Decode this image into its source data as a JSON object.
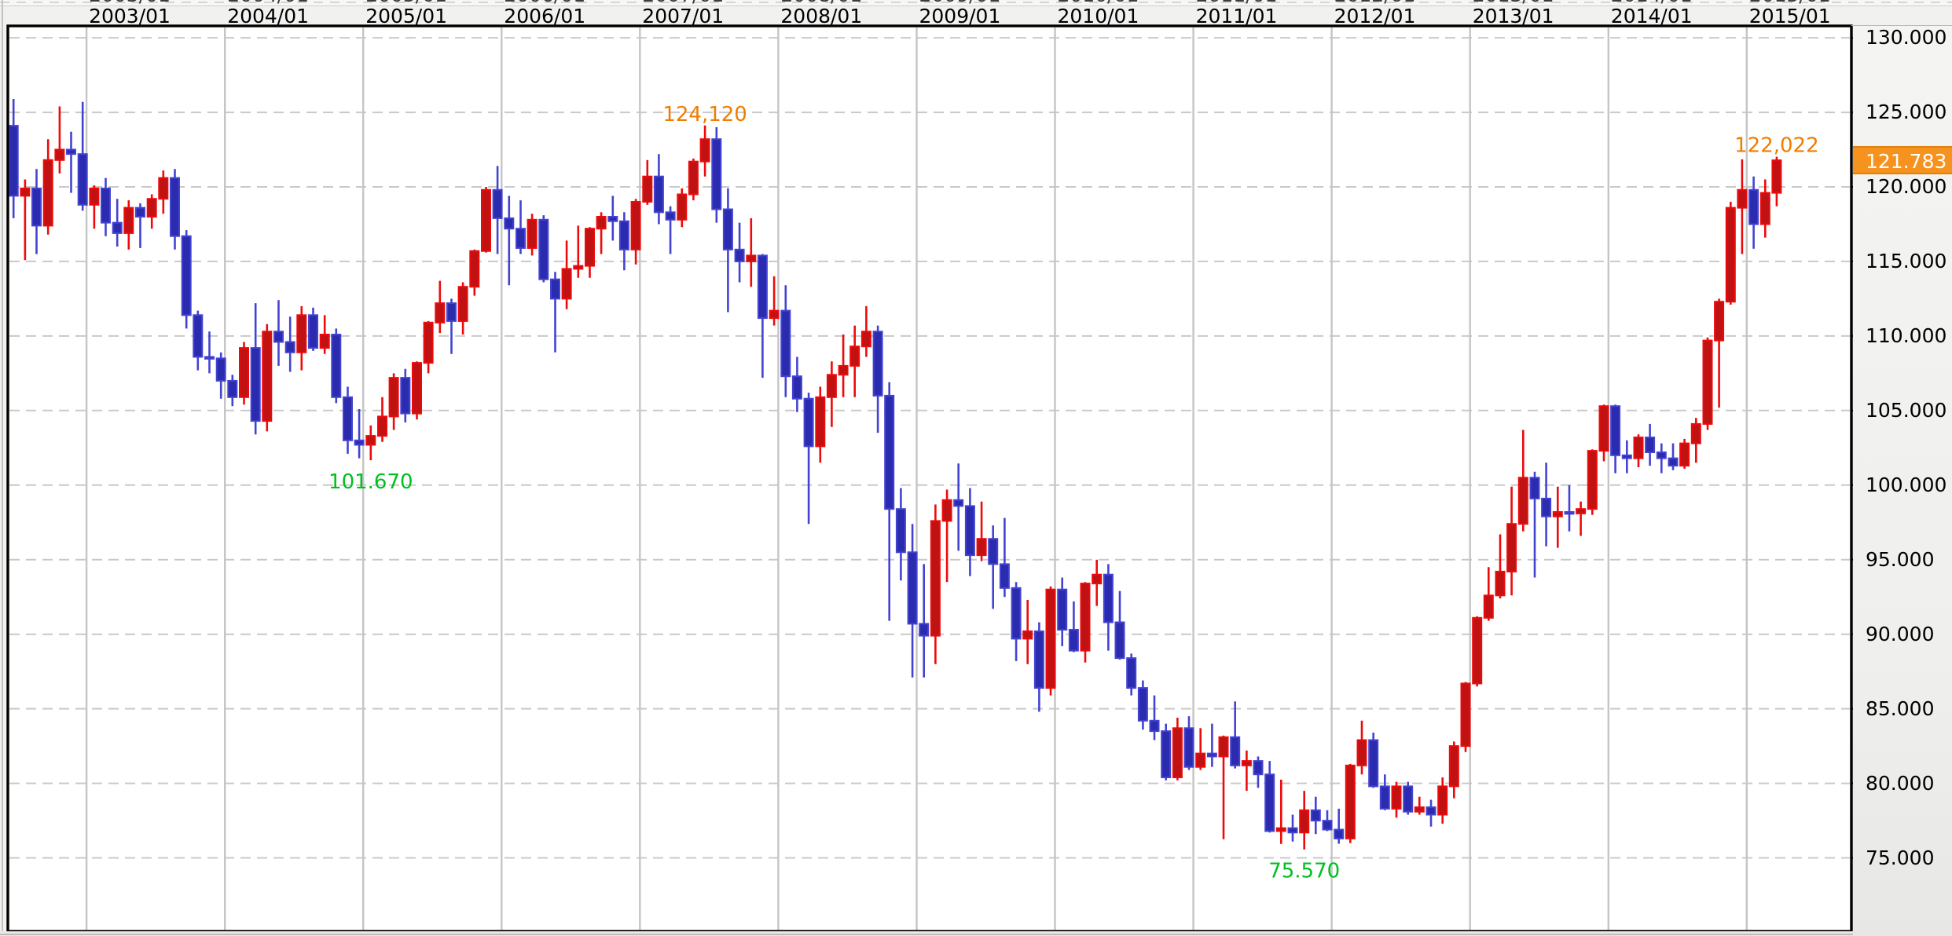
{
  "x_axis": {
    "years": [
      2003,
      2004,
      2005,
      2006,
      2007,
      2008,
      2009,
      2010,
      2011,
      2012,
      2013,
      2014,
      2015
    ],
    "labels": [
      "2003/01",
      "2004/01",
      "2005/01",
      "2006/01",
      "2007/01",
      "2008/01",
      "2009/01",
      "2010/01",
      "2011/01",
      "2012/01",
      "2013/01",
      "2014/01",
      "2015/01"
    ]
  },
  "y_axis": {
    "labels": [
      "130.000",
      "125.000",
      "120.000",
      "115.000",
      "110.000",
      "105.000",
      "100.000",
      "95.000",
      "90.000",
      "85.000",
      "80.000",
      "75.000"
    ]
  },
  "current_price": {
    "label": "121.783",
    "value": 121.783
  },
  "annotations": [
    {
      "text": "124,120",
      "month": "2007-06",
      "price": 124.12,
      "position": "above",
      "kind": "high"
    },
    {
      "text": "122,022",
      "month": "2015-03",
      "price": 122.022,
      "position": "above",
      "kind": "high"
    },
    {
      "text": "101.670",
      "month": "2005-01",
      "price": 101.67,
      "position": "below",
      "kind": "low"
    },
    {
      "text": "75.570",
      "month": "2011-10",
      "price": 75.57,
      "position": "below",
      "kind": "low"
    }
  ],
  "palette": {
    "up_fill": "#c01212",
    "up_border": "#ee0a0a",
    "down_fill": "#2b2bb0",
    "down_border": "#4343d2",
    "h_grid": "#c9c9c9",
    "v_grid": "#c5c5c5",
    "frame": "#000000",
    "plot_bg": "#ffffff",
    "annotation_high": "#ef7d00",
    "annotation_low": "#00c01e",
    "badge_bg": "#f6921e",
    "badge_text": "#ffffff",
    "axis_text": "#000000",
    "tick": "#000000"
  },
  "chart_data": {
    "type": "candlestick",
    "interval": "monthly",
    "start_month": "2002-06",
    "ylim": [
      70.5,
      130.8
    ],
    "grid": {
      "h_step": 5,
      "h_min": 75,
      "h_max": 130,
      "v_years": [
        2003,
        2004,
        2005,
        2006,
        2007,
        2008,
        2009,
        2010,
        2011,
        2012,
        2013,
        2014,
        2015
      ]
    },
    "legend": "none",
    "ohlc": [
      [
        124.1,
        125.9,
        117.9,
        119.4
      ],
      [
        119.4,
        120.5,
        115.1,
        119.9
      ],
      [
        119.9,
        121.2,
        115.5,
        117.4
      ],
      [
        117.4,
        123.2,
        116.8,
        121.8
      ],
      [
        121.8,
        125.4,
        120.9,
        122.5
      ],
      [
        122.5,
        123.7,
        119.6,
        122.2
      ],
      [
        122.2,
        125.7,
        118.4,
        118.8
      ],
      [
        118.8,
        120.1,
        117.2,
        119.9
      ],
      [
        119.9,
        120.6,
        116.7,
        117.6
      ],
      [
        117.6,
        119.2,
        116.0,
        116.9
      ],
      [
        116.9,
        119.1,
        115.8,
        118.6
      ],
      [
        118.6,
        118.9,
        115.9,
        118.0
      ],
      [
        118.0,
        119.5,
        117.2,
        119.2
      ],
      [
        119.2,
        121.1,
        118.2,
        120.6
      ],
      [
        120.6,
        121.2,
        115.8,
        116.7
      ],
      [
        116.7,
        117.1,
        110.5,
        111.4
      ],
      [
        111.4,
        111.7,
        107.7,
        108.6
      ],
      [
        108.6,
        110.3,
        107.5,
        108.5
      ],
      [
        108.5,
        108.9,
        105.8,
        107.0
      ],
      [
        107.0,
        107.4,
        105.3,
        105.9
      ],
      [
        105.9,
        109.6,
        105.4,
        109.2
      ],
      [
        109.2,
        112.2,
        103.4,
        104.3
      ],
      [
        104.3,
        110.8,
        103.6,
        110.3
      ],
      [
        110.3,
        112.4,
        108.0,
        109.6
      ],
      [
        109.6,
        111.3,
        107.6,
        108.9
      ],
      [
        108.9,
        112.0,
        107.7,
        111.4
      ],
      [
        111.4,
        111.9,
        109.0,
        109.2
      ],
      [
        109.2,
        111.4,
        108.8,
        110.1
      ],
      [
        110.1,
        110.5,
        105.5,
        105.9
      ],
      [
        105.9,
        106.6,
        102.1,
        103.0
      ],
      [
        103.0,
        105.1,
        101.8,
        102.7
      ],
      [
        102.7,
        104.0,
        101.67,
        103.3
      ],
      [
        103.3,
        105.9,
        102.9,
        104.6
      ],
      [
        104.6,
        107.5,
        103.7,
        107.2
      ],
      [
        107.2,
        107.8,
        104.2,
        104.8
      ],
      [
        104.8,
        108.3,
        104.4,
        108.2
      ],
      [
        108.2,
        111.0,
        107.5,
        110.9
      ],
      [
        110.9,
        113.7,
        110.2,
        112.2
      ],
      [
        112.2,
        112.5,
        108.8,
        111.0
      ],
      [
        111.0,
        113.6,
        110.1,
        113.3
      ],
      [
        113.3,
        115.8,
        112.7,
        115.7
      ],
      [
        115.7,
        120.0,
        115.6,
        119.8
      ],
      [
        119.8,
        121.4,
        115.5,
        117.9
      ],
      [
        117.9,
        119.4,
        113.4,
        117.2
      ],
      [
        117.2,
        119.1,
        115.5,
        115.9
      ],
      [
        115.9,
        118.2,
        115.4,
        117.8
      ],
      [
        117.8,
        118.1,
        113.6,
        113.8
      ],
      [
        113.8,
        114.3,
        108.9,
        112.5
      ],
      [
        112.5,
        116.4,
        111.8,
        114.5
      ],
      [
        114.5,
        117.4,
        113.9,
        114.7
      ],
      [
        114.7,
        117.3,
        113.9,
        117.2
      ],
      [
        117.2,
        118.3,
        115.5,
        118.0
      ],
      [
        118.0,
        119.4,
        116.4,
        117.7
      ],
      [
        117.7,
        118.3,
        114.4,
        115.8
      ],
      [
        115.8,
        119.2,
        114.8,
        119.0
      ],
      [
        119.0,
        121.8,
        118.8,
        120.7
      ],
      [
        120.7,
        122.2,
        117.5,
        118.3
      ],
      [
        118.3,
        118.7,
        115.5,
        117.8
      ],
      [
        117.8,
        119.9,
        117.3,
        119.5
      ],
      [
        119.5,
        121.9,
        119.1,
        121.7
      ],
      [
        121.7,
        124.12,
        120.7,
        123.2
      ],
      [
        123.2,
        124.0,
        117.6,
        118.5
      ],
      [
        118.5,
        119.9,
        111.6,
        115.8
      ],
      [
        115.8,
        117.6,
        113.6,
        115.0
      ],
      [
        115.0,
        117.9,
        113.3,
        115.4
      ],
      [
        115.4,
        115.5,
        107.2,
        111.2
      ],
      [
        111.2,
        114.0,
        110.7,
        111.7
      ],
      [
        111.7,
        113.4,
        105.9,
        107.3
      ],
      [
        107.3,
        108.6,
        104.9,
        105.8
      ],
      [
        105.8,
        106.2,
        97.4,
        102.6
      ],
      [
        102.6,
        106.6,
        101.5,
        105.9
      ],
      [
        105.9,
        108.3,
        103.9,
        107.4
      ],
      [
        107.4,
        110.1,
        105.9,
        108.0
      ],
      [
        108.0,
        110.7,
        105.9,
        109.3
      ],
      [
        109.3,
        112.0,
        108.6,
        110.3
      ],
      [
        110.3,
        110.7,
        103.5,
        106.0
      ],
      [
        106.0,
        106.9,
        90.9,
        98.4
      ],
      [
        98.4,
        99.8,
        93.6,
        95.5
      ],
      [
        95.5,
        97.4,
        87.1,
        90.7
      ],
      [
        90.7,
        94.7,
        87.1,
        89.9
      ],
      [
        89.9,
        98.7,
        88.0,
        97.6
      ],
      [
        97.6,
        99.7,
        93.5,
        99.0
      ],
      [
        99.0,
        101.45,
        95.6,
        98.6
      ],
      [
        98.6,
        99.8,
        93.9,
        95.3
      ],
      [
        95.3,
        98.9,
        94.9,
        96.4
      ],
      [
        96.4,
        97.3,
        91.7,
        94.7
      ],
      [
        94.7,
        97.8,
        92.5,
        93.1
      ],
      [
        93.1,
        93.5,
        88.2,
        89.7
      ],
      [
        89.7,
        92.3,
        88.0,
        90.2
      ],
      [
        90.2,
        90.8,
        84.8,
        86.4
      ],
      [
        86.4,
        93.2,
        85.9,
        93.0
      ],
      [
        93.0,
        93.8,
        89.2,
        90.3
      ],
      [
        90.3,
        92.2,
        88.8,
        88.9
      ],
      [
        88.9,
        93.5,
        88.1,
        93.4
      ],
      [
        93.4,
        95.0,
        91.9,
        94.0
      ],
      [
        94.0,
        94.7,
        88.9,
        90.8
      ],
      [
        90.8,
        92.9,
        88.3,
        88.4
      ],
      [
        88.4,
        88.7,
        85.9,
        86.4
      ],
      [
        86.4,
        86.9,
        83.6,
        84.2
      ],
      [
        84.2,
        85.9,
        82.9,
        83.5
      ],
      [
        83.5,
        84.0,
        80.2,
        80.4
      ],
      [
        80.4,
        84.4,
        80.2,
        83.7
      ],
      [
        83.7,
        84.5,
        80.9,
        81.1
      ],
      [
        81.1,
        83.7,
        80.9,
        82.0
      ],
      [
        82.0,
        84.0,
        81.1,
        81.8
      ],
      [
        81.8,
        83.2,
        76.25,
        83.1
      ],
      [
        83.1,
        85.5,
        81.0,
        81.2
      ],
      [
        81.2,
        82.2,
        79.5,
        81.5
      ],
      [
        81.5,
        81.8,
        79.7,
        80.6
      ],
      [
        80.6,
        81.5,
        76.7,
        76.8
      ],
      [
        76.8,
        80.25,
        75.94,
        77.0
      ],
      [
        77.0,
        77.9,
        76.1,
        76.7
      ],
      [
        76.7,
        79.5,
        75.57,
        78.2
      ],
      [
        78.2,
        79.1,
        76.6,
        77.5
      ],
      [
        77.5,
        78.2,
        76.8,
        76.9
      ],
      [
        76.9,
        78.3,
        75.95,
        76.3
      ],
      [
        76.3,
        81.3,
        76.0,
        81.2
      ],
      [
        81.2,
        84.2,
        80.6,
        82.9
      ],
      [
        82.9,
        83.4,
        79.7,
        79.8
      ],
      [
        79.8,
        80.6,
        78.2,
        78.3
      ],
      [
        78.3,
        80.1,
        77.7,
        79.8
      ],
      [
        79.8,
        80.1,
        77.9,
        78.1
      ],
      [
        78.1,
        79.1,
        77.9,
        78.4
      ],
      [
        78.4,
        78.9,
        77.1,
        77.9
      ],
      [
        77.9,
        80.4,
        77.3,
        79.8
      ],
      [
        79.8,
        82.8,
        79.0,
        82.5
      ],
      [
        82.5,
        86.8,
        82.1,
        86.7
      ],
      [
        86.7,
        91.2,
        86.5,
        91.1
      ],
      [
        91.1,
        94.5,
        90.9,
        92.6
      ],
      [
        92.6,
        96.7,
        92.4,
        94.2
      ],
      [
        94.2,
        99.9,
        92.6,
        97.4
      ],
      [
        97.4,
        103.7,
        96.9,
        100.5
      ],
      [
        100.5,
        100.9,
        93.8,
        99.1
      ],
      [
        99.1,
        101.5,
        95.9,
        97.9
      ],
      [
        97.9,
        99.9,
        95.8,
        98.2
      ],
      [
        98.2,
        100.0,
        96.9,
        98.1
      ],
      [
        98.1,
        98.9,
        96.6,
        98.4
      ],
      [
        98.4,
        102.4,
        98.0,
        102.3
      ],
      [
        102.3,
        105.4,
        101.6,
        105.3
      ],
      [
        105.3,
        105.4,
        100.8,
        102.0
      ],
      [
        102.0,
        103.0,
        100.8,
        101.8
      ],
      [
        101.8,
        103.4,
        101.2,
        103.2
      ],
      [
        103.2,
        104.1,
        101.3,
        102.2
      ],
      [
        102.2,
        102.8,
        100.8,
        101.8
      ],
      [
        101.8,
        102.8,
        101.0,
        101.3
      ],
      [
        101.3,
        103.1,
        101.1,
        102.8
      ],
      [
        102.8,
        104.5,
        101.5,
        104.1
      ],
      [
        104.1,
        109.9,
        103.7,
        109.7
      ],
      [
        109.7,
        112.5,
        105.2,
        112.3
      ],
      [
        112.3,
        119.0,
        112.1,
        118.6
      ],
      [
        118.6,
        121.85,
        115.5,
        119.8
      ],
      [
        119.8,
        120.7,
        115.85,
        117.5
      ],
      [
        117.5,
        120.5,
        116.6,
        119.6
      ],
      [
        119.6,
        122.022,
        118.7,
        121.783
      ]
    ]
  }
}
